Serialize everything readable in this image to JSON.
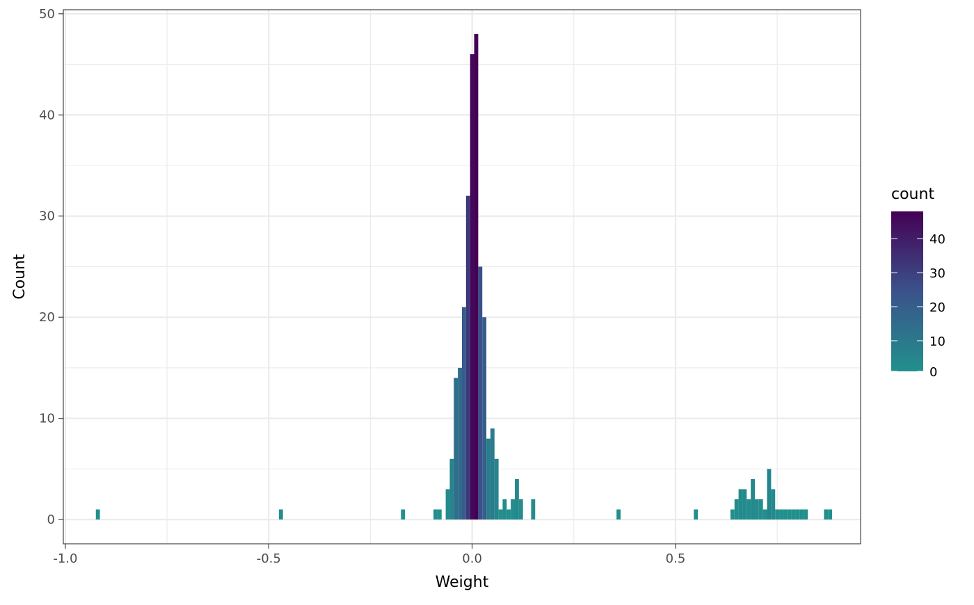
{
  "chart_data": {
    "type": "bar",
    "subtype": "histogram",
    "xlabel": "Weight",
    "ylabel": "Count",
    "xlim": [
      -1.005,
      0.955
    ],
    "ylim": [
      -2.4,
      50.4
    ],
    "xticks": [
      -1.0,
      -0.5,
      0.0,
      0.5
    ],
    "xtick_labels": [
      "-1.0",
      "-0.5",
      "0.0",
      "0.5"
    ],
    "yticks": [
      0,
      10,
      20,
      30,
      40,
      50
    ],
    "ytick_labels": [
      "0",
      "10",
      "20",
      "30",
      "40",
      "50"
    ],
    "grid": true,
    "bin_width": 0.01,
    "x": [
      -0.92,
      -0.47,
      -0.17,
      -0.09,
      -0.08,
      -0.06,
      -0.05,
      -0.04,
      -0.03,
      -0.02,
      -0.01,
      0.0,
      0.01,
      0.02,
      0.03,
      0.04,
      0.05,
      0.06,
      0.07,
      0.08,
      0.09,
      0.1,
      0.11,
      0.12,
      0.15,
      0.36,
      0.55,
      0.64,
      0.65,
      0.66,
      0.67,
      0.68,
      0.69,
      0.7,
      0.71,
      0.72,
      0.73,
      0.74,
      0.75,
      0.76,
      0.77,
      0.78,
      0.79,
      0.8,
      0.81,
      0.82,
      0.87,
      0.88
    ],
    "values": [
      1,
      1,
      1,
      1,
      1,
      3,
      6,
      14,
      15,
      21,
      32,
      46,
      48,
      25,
      20,
      8,
      9,
      6,
      1,
      2,
      1,
      2,
      4,
      2,
      2,
      1,
      1,
      1,
      2,
      3,
      3,
      2,
      4,
      2,
      2,
      1,
      5,
      3,
      1,
      1,
      1,
      1,
      1,
      1,
      1,
      1,
      1,
      1
    ],
    "legend": {
      "title": "count",
      "type": "colorbar",
      "position": "right",
      "ticks": [
        0,
        10,
        20,
        30,
        40
      ],
      "tick_labels": [
        "0",
        "10",
        "20",
        "30",
        "40"
      ],
      "range": [
        1,
        48
      ],
      "color_low": "#21908c",
      "color_high": "#440154"
    }
  }
}
